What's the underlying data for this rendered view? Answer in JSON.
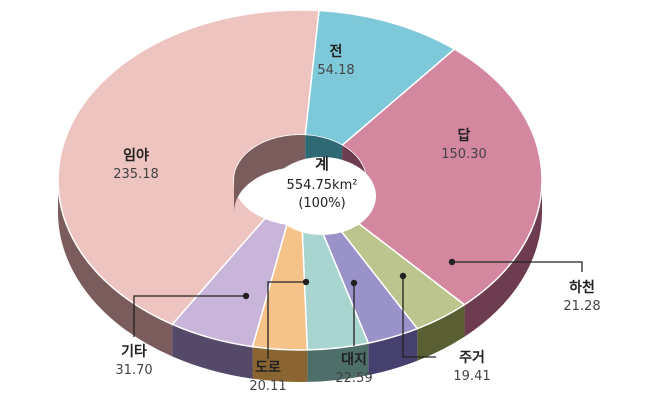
{
  "chart_data": {
    "type": "pie",
    "center_label": "계",
    "total_text": "554.75km²",
    "total_percent_text": "(100%)",
    "slices": [
      {
        "name": "전",
        "value": 54.18,
        "value_text": "54.18",
        "color": "#7ec9d9",
        "side": "#2f6a74"
      },
      {
        "name": "답",
        "value": 150.3,
        "value_text": "150.30",
        "color": "#d4889f",
        "side": "#6e3c50"
      },
      {
        "name": "하천",
        "value": 21.28,
        "value_text": "21.28",
        "color": "#bcc58d",
        "side": "#5a5f33"
      },
      {
        "name": "주거",
        "value": 19.41,
        "value_text": "19.41",
        "color": "#9a93c9",
        "side": "#46406e"
      },
      {
        "name": "대지",
        "value": 22.59,
        "value_text": "22.59",
        "color": "#a8d5cf",
        "side": "#4d6e69"
      },
      {
        "name": "도로",
        "value": 20.11,
        "value_text": "20.11",
        "color": "#f5c38a",
        "side": "#8a6532"
      },
      {
        "name": "기타",
        "value": 31.7,
        "value_text": "31.70",
        "color": "#c9b5d9",
        "side": "#55496a"
      },
      {
        "name": "임야",
        "value": 235.18,
        "value_text": "235.18",
        "color": "#eec4c0",
        "side": "#7a5c5c"
      }
    ]
  }
}
